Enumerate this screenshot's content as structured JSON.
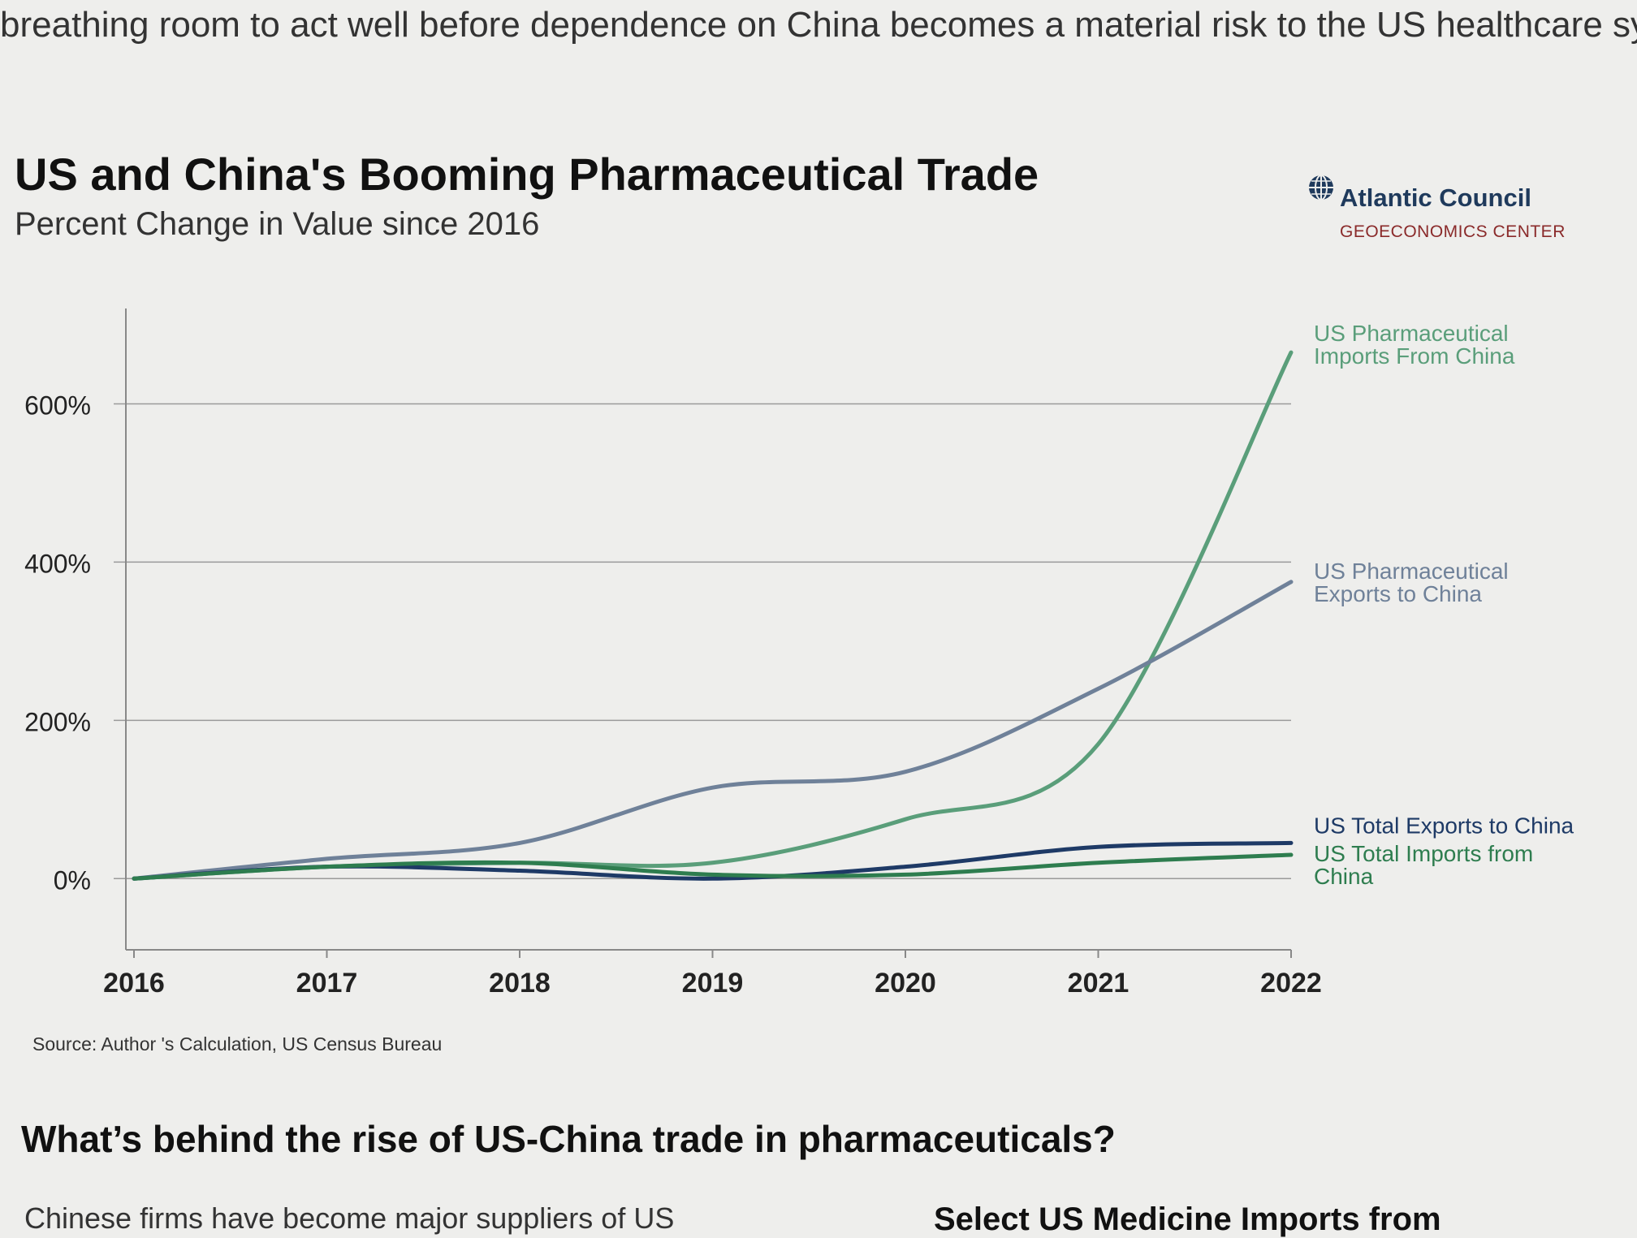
{
  "article": {
    "intro_text": "breathing room to act well before dependence on China becomes a material risk to the US healthcare sy",
    "section_heading": "What’s behind the rise of US-China trade in pharmaceuticals?",
    "body_text": "Chinese firms have become major suppliers of US",
    "body_heading_right": "Select US Medicine Imports from"
  },
  "brand": {
    "name": "Atlantic Council",
    "sub": "GEOECONOMICS CENTER",
    "icon": "globe-icon"
  },
  "chart_data": {
    "type": "line",
    "title": "US and China's Booming Pharmaceutical Trade",
    "subtitle": "Percent Change in Value since 2016",
    "source": "Source: Author 's Calculation, US Census Bureau",
    "x": [
      "2016",
      "2017",
      "2018",
      "2019",
      "2020",
      "2021",
      "2022"
    ],
    "ylim": [
      -90,
      700
    ],
    "yticks": [
      0,
      200,
      400,
      600
    ],
    "ytick_labels": [
      "0%",
      "200%",
      "400%",
      "600%"
    ],
    "grid": true,
    "legend": "direct labels at right end of lines",
    "series": [
      {
        "name": "US Pharmaceutical Imports From China",
        "color": "#5a9e7a",
        "values": [
          0,
          15,
          20,
          20,
          75,
          170,
          665
        ]
      },
      {
        "name": "US Pharmaceutical Exports to China",
        "color": "#6f8199",
        "values": [
          0,
          25,
          45,
          115,
          135,
          240,
          375
        ]
      },
      {
        "name": "US Total Exports to China",
        "color": "#1e3a66",
        "values": [
          0,
          15,
          10,
          0,
          15,
          40,
          45
        ]
      },
      {
        "name": "US Total Imports from China",
        "color": "#2e7d4f",
        "values": [
          0,
          15,
          20,
          5,
          5,
          20,
          30
        ]
      }
    ]
  }
}
